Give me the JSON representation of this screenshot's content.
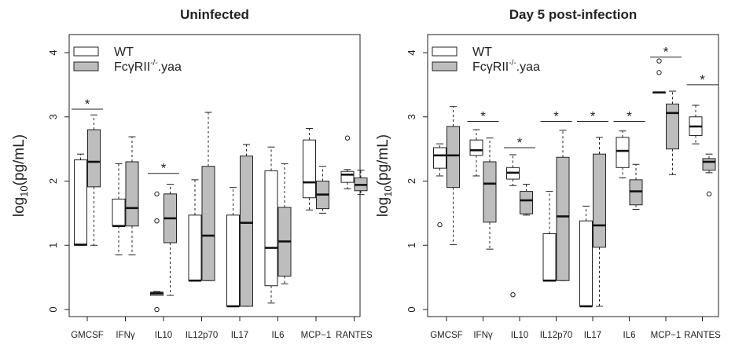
{
  "chart_data": [
    {
      "type": "box",
      "title": "Uninfected",
      "ylabel_base": "log",
      "ylabel_sub": "10",
      "ylabel_rest": "(pg/mL)",
      "ylim": [
        0,
        4
      ],
      "yticks": [
        "0",
        "1",
        "2",
        "3",
        "4"
      ],
      "categories": [
        "GMCSF",
        "IFNγ",
        "IL10",
        "IL12p70",
        "IL17",
        "IL6",
        "MCP−1",
        "RANTES"
      ],
      "legend": {
        "position": "top-left",
        "entries": [
          {
            "label": "WT",
            "fill": "#ffffff"
          },
          {
            "label": "FcγRII",
            "sup": "-/-",
            "suffix": ".yaa",
            "fill": "#bdbdbd"
          }
        ]
      },
      "series": [
        {
          "name": "WT",
          "fill": "#ffffff",
          "boxes": [
            {
              "min": 1.0,
              "q1": 1.0,
              "median": 1.01,
              "q3": 2.33,
              "max": 2.42,
              "outliers": []
            },
            {
              "min": 0.85,
              "q1": 1.3,
              "median": 1.3,
              "q3": 1.72,
              "max": 2.27,
              "outliers": []
            },
            {
              "min": 0.22,
              "q1": 0.22,
              "median": 0.25,
              "q3": 0.27,
              "max": 0.28,
              "outliers": [
                1.8,
                1.38,
                0.0
              ]
            },
            {
              "min": 0.45,
              "q1": 0.45,
              "median": 0.45,
              "q3": 1.47,
              "max": 2.02,
              "outliers": []
            },
            {
              "min": 0.05,
              "q1": 0.05,
              "median": 0.05,
              "q3": 1.47,
              "max": 1.9,
              "outliers": []
            },
            {
              "min": 0.1,
              "q1": 0.37,
              "median": 0.96,
              "q3": 2.16,
              "max": 2.53,
              "outliers": []
            },
            {
              "min": 1.55,
              "q1": 1.74,
              "median": 1.98,
              "q3": 2.64,
              "max": 2.82,
              "outliers": []
            },
            {
              "min": 1.88,
              "q1": 1.98,
              "median": 2.1,
              "q3": 2.15,
              "max": 2.18,
              "outliers": [
                2.67
              ]
            }
          ]
        },
        {
          "name": "FcγRII-/-.yaa",
          "fill": "#bdbdbd",
          "boxes": [
            {
              "min": 1.0,
              "q1": 1.91,
              "median": 2.3,
              "q3": 2.8,
              "max": 3.03,
              "outliers": []
            },
            {
              "min": 0.85,
              "q1": 1.3,
              "median": 1.58,
              "q3": 2.3,
              "max": 2.69,
              "outliers": []
            },
            {
              "min": 0.22,
              "q1": 1.04,
              "median": 1.42,
              "q3": 1.8,
              "max": 1.95,
              "outliers": []
            },
            {
              "min": 0.45,
              "q1": 0.45,
              "median": 1.15,
              "q3": 2.23,
              "max": 3.07,
              "outliers": []
            },
            {
              "min": 0.05,
              "q1": 0.05,
              "median": 1.35,
              "q3": 2.39,
              "max": 2.57,
              "outliers": []
            },
            {
              "min": 0.4,
              "q1": 0.52,
              "median": 1.06,
              "q3": 1.59,
              "max": 2.27,
              "outliers": []
            },
            {
              "min": 1.5,
              "q1": 1.57,
              "median": 1.79,
              "q3": 2.0,
              "max": 2.23,
              "outliers": []
            },
            {
              "min": 1.79,
              "q1": 1.85,
              "median": 1.94,
              "q3": 2.05,
              "max": 2.17,
              "outliers": []
            }
          ]
        }
      ],
      "significance": [
        {
          "category_index": 0,
          "y": 3.12,
          "label": "*"
        },
        {
          "category_index": 2,
          "y": 2.12,
          "label": "*"
        }
      ]
    },
    {
      "type": "box",
      "title": "Day 5 post-infection",
      "ylabel_base": "log",
      "ylabel_sub": "10",
      "ylabel_rest": "(pg/mL)",
      "ylim": [
        0,
        4
      ],
      "yticks": [
        "0",
        "1",
        "2",
        "3",
        "4"
      ],
      "categories": [
        "GMCSF",
        "IFNγ",
        "IL10",
        "IL12p70",
        "IL17",
        "IL6",
        "MCP−1",
        "RANTES"
      ],
      "legend": {
        "position": "top-left",
        "entries": [
          {
            "label": "WT",
            "fill": "#ffffff"
          },
          {
            "label": "FcγRII",
            "sup": "-/-",
            "suffix": ".yaa",
            "fill": "#bdbdbd"
          }
        ]
      },
      "series": [
        {
          "name": "WT",
          "fill": "#ffffff",
          "boxes": [
            {
              "min": 2.08,
              "q1": 2.2,
              "median": 2.4,
              "q3": 2.52,
              "max": 2.58,
              "outliers": [
                1.32
              ]
            },
            {
              "min": 2.08,
              "q1": 2.4,
              "median": 2.48,
              "q3": 2.64,
              "max": 2.8,
              "outliers": []
            },
            {
              "min": 1.93,
              "q1": 2.03,
              "median": 2.13,
              "q3": 2.21,
              "max": 2.41,
              "outliers": [
                0.23
              ]
            },
            {
              "min": 0.45,
              "q1": 0.45,
              "median": 0.45,
              "q3": 1.18,
              "max": 1.84,
              "outliers": []
            },
            {
              "min": 0.05,
              "q1": 0.05,
              "median": 0.05,
              "q3": 1.38,
              "max": 1.61,
              "outliers": []
            },
            {
              "min": 2.05,
              "q1": 2.21,
              "median": 2.47,
              "q3": 2.68,
              "max": 2.78,
              "outliers": []
            },
            {
              "min": 3.38,
              "q1": 3.38,
              "median": 3.38,
              "q3": 3.38,
              "max": 3.38,
              "outliers": [
                3.87,
                3.69
              ]
            },
            {
              "min": 2.58,
              "q1": 2.71,
              "median": 2.85,
              "q3": 3.0,
              "max": 3.18,
              "outliers": []
            }
          ]
        },
        {
          "name": "FcγRII-/-.yaa",
          "fill": "#bdbdbd",
          "boxes": [
            {
              "min": 1.01,
              "q1": 1.9,
              "median": 2.4,
              "q3": 2.85,
              "max": 3.16,
              "outliers": []
            },
            {
              "min": 0.94,
              "q1": 1.36,
              "median": 1.96,
              "q3": 2.3,
              "max": 2.67,
              "outliers": []
            },
            {
              "min": 1.47,
              "q1": 1.49,
              "median": 1.7,
              "q3": 1.84,
              "max": 1.95,
              "outliers": []
            },
            {
              "min": 0.45,
              "q1": 0.45,
              "median": 1.45,
              "q3": 2.37,
              "max": 2.79,
              "outliers": []
            },
            {
              "min": 0.05,
              "q1": 0.97,
              "median": 1.31,
              "q3": 2.42,
              "max": 2.68,
              "outliers": []
            },
            {
              "min": 1.56,
              "q1": 1.63,
              "median": 1.84,
              "q3": 2.02,
              "max": 2.26,
              "outliers": []
            },
            {
              "min": 2.1,
              "q1": 2.5,
              "median": 3.06,
              "q3": 3.2,
              "max": 3.4,
              "outliers": []
            },
            {
              "min": 2.13,
              "q1": 2.17,
              "median": 2.3,
              "q3": 2.35,
              "max": 2.42,
              "outliers": [
                1.8
              ]
            }
          ]
        }
      ],
      "significance": [
        {
          "category_index": 1,
          "y": 2.93,
          "label": "*"
        },
        {
          "category_index": 2,
          "y": 2.52,
          "label": "*"
        },
        {
          "category_index": 3,
          "y": 2.93,
          "label": "*"
        },
        {
          "category_index": 4,
          "y": 2.93,
          "label": "*"
        },
        {
          "category_index": 5,
          "y": 2.93,
          "label": "*"
        },
        {
          "category_index": 6,
          "y": 3.93,
          "label": "*"
        },
        {
          "category_index": 7,
          "y": 3.5,
          "label": "*"
        }
      ]
    }
  ]
}
